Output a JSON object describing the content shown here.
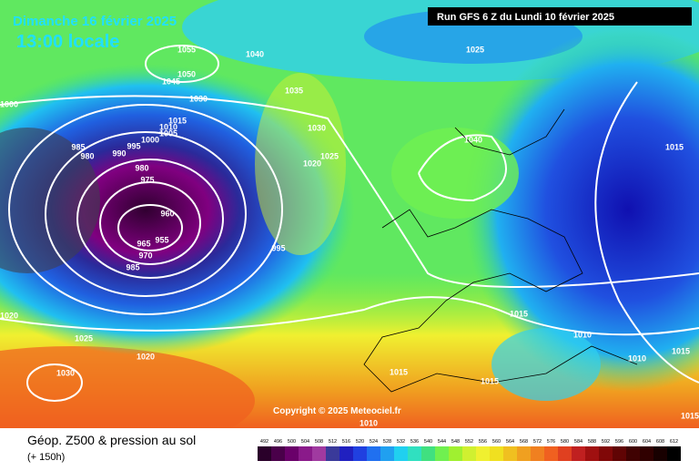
{
  "header": {
    "title": "Dimanche 16 février 2025",
    "time": "13:00 locale",
    "run": "Run GFS 6 Z du Lundi 10 février 2025"
  },
  "footer": {
    "caption": "Géop. Z500 & pression au sol",
    "lead": "(+ 150h)",
    "copyright": "Copyright © 2025 Meteociel.fr"
  },
  "scale": {
    "labels": [
      492,
      496,
      500,
      504,
      508,
      512,
      516,
      520,
      524,
      528,
      532,
      536,
      540,
      544,
      548,
      552,
      556,
      560,
      564,
      568,
      572,
      576,
      580,
      584,
      588,
      592,
      596,
      600,
      604,
      608,
      612
    ],
    "colors": [
      "#2a002a",
      "#4a004a",
      "#6a006a",
      "#8a1a8a",
      "#a03aa0",
      "#3a3a9a",
      "#2020c0",
      "#2040e0",
      "#2070f0",
      "#20a0f0",
      "#20d0f0",
      "#30e0c0",
      "#40e080",
      "#70f050",
      "#a0f030",
      "#d0f030",
      "#f0f030",
      "#f0e020",
      "#f0c020",
      "#f0a020",
      "#f08020",
      "#f06020",
      "#e04020",
      "#c02020",
      "#a01010",
      "#800808",
      "#600404",
      "#400202",
      "#300000",
      "#180000",
      "#000000"
    ]
  },
  "isobar_labels": [
    1055,
    1050,
    1045,
    1040,
    1035,
    1030,
    1030,
    1025,
    1020,
    1015,
    1010,
    1005,
    1000,
    1000,
    995,
    990,
    985,
    980,
    980,
    975,
    970,
    965,
    960,
    955,
    985,
    995,
    1025,
    1040,
    1015,
    1015,
    1010,
    1010,
    1015,
    1020,
    1025,
    1020,
    1030,
    1015,
    1015,
    1010,
    1015
  ]
}
